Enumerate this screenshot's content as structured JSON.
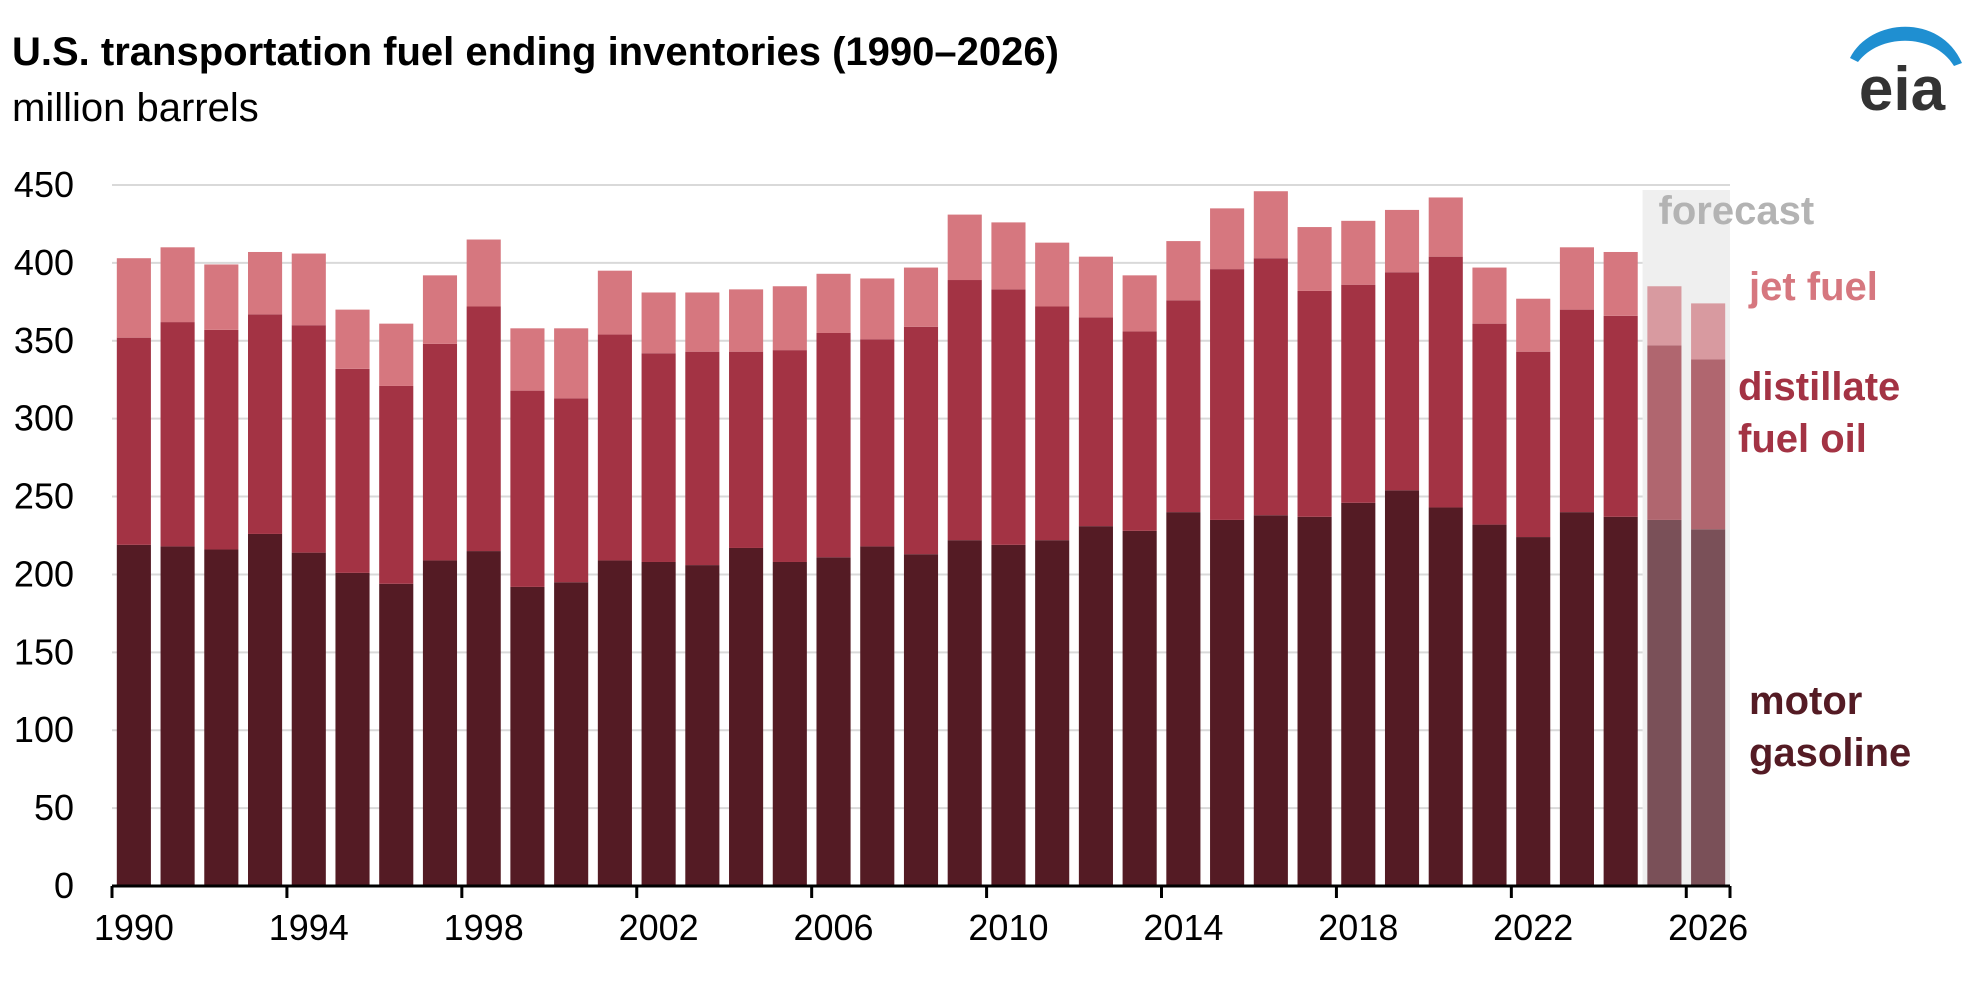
{
  "title": "U.S. transportation fuel ending inventories (1990–2026)",
  "subtitle": "million barrels",
  "logo_text": "eia",
  "forecast_label": "forecast",
  "series_labels": {
    "jet": "jet fuel",
    "distillate_line1": "distillate",
    "distillate_line2": "fuel oil",
    "gasoline_line1": "motor",
    "gasoline_line2": "gasoline"
  },
  "colors": {
    "motor_gasoline": "#541b24",
    "distillate_fuel_oil": "#a33344",
    "jet_fuel": "#d6777f",
    "motor_gasoline_forecast": "#7a5058",
    "distillate_fuel_oil_forecast": "#b0666f",
    "jet_fuel_forecast": "#d89aa0",
    "forecast_band": "#efefef",
    "forecast_text": "#b3b3b3",
    "gridline": "#d9d9d9"
  },
  "chart_data": {
    "type": "bar",
    "stacked": true,
    "title": "U.S. transportation fuel ending inventories (1990–2026)",
    "ylabel": "million barrels",
    "ylim": [
      0,
      450
    ],
    "yticks": [
      0,
      50,
      100,
      150,
      200,
      250,
      300,
      350,
      400,
      450
    ],
    "xticks": [
      "1990",
      "1994",
      "1998",
      "2002",
      "2006",
      "2010",
      "2014",
      "2018",
      "2022",
      "2026"
    ],
    "categories": [
      "1990",
      "1991",
      "1992",
      "1993",
      "1994",
      "1995",
      "1996",
      "1997",
      "1998",
      "1999",
      "2000",
      "2001",
      "2002",
      "2003",
      "2004",
      "2005",
      "2006",
      "2007",
      "2008",
      "2009",
      "2010",
      "2011",
      "2012",
      "2013",
      "2014",
      "2015",
      "2016",
      "2017",
      "2018",
      "2019",
      "2020",
      "2021",
      "2022",
      "2023",
      "2024",
      "2025",
      "2026"
    ],
    "forecast_from": "2025",
    "grid": true,
    "series": [
      {
        "name": "motor gasoline",
        "values": [
          219,
          218,
          216,
          226,
          214,
          201,
          194,
          209,
          215,
          192,
          195,
          209,
          208,
          206,
          217,
          208,
          211,
          218,
          213,
          222,
          219,
          222,
          231,
          228,
          240,
          235,
          238,
          237,
          246,
          254,
          243,
          232,
          224,
          240,
          237,
          235,
          229
        ]
      },
      {
        "name": "distillate fuel oil",
        "values": [
          133,
          144,
          141,
          141,
          146,
          131,
          127,
          139,
          157,
          126,
          118,
          145,
          134,
          137,
          126,
          136,
          144,
          133,
          146,
          167,
          164,
          150,
          134,
          128,
          136,
          161,
          165,
          145,
          140,
          140,
          161,
          129,
          119,
          130,
          129,
          112,
          109
        ]
      },
      {
        "name": "jet fuel",
        "values": [
          51,
          48,
          42,
          40,
          46,
          38,
          40,
          44,
          43,
          40,
          45,
          41,
          39,
          38,
          40,
          41,
          38,
          39,
          38,
          42,
          43,
          41,
          39,
          36,
          38,
          39,
          43,
          41,
          41,
          40,
          38,
          36,
          34,
          40,
          41,
          38,
          36
        ]
      }
    ]
  }
}
